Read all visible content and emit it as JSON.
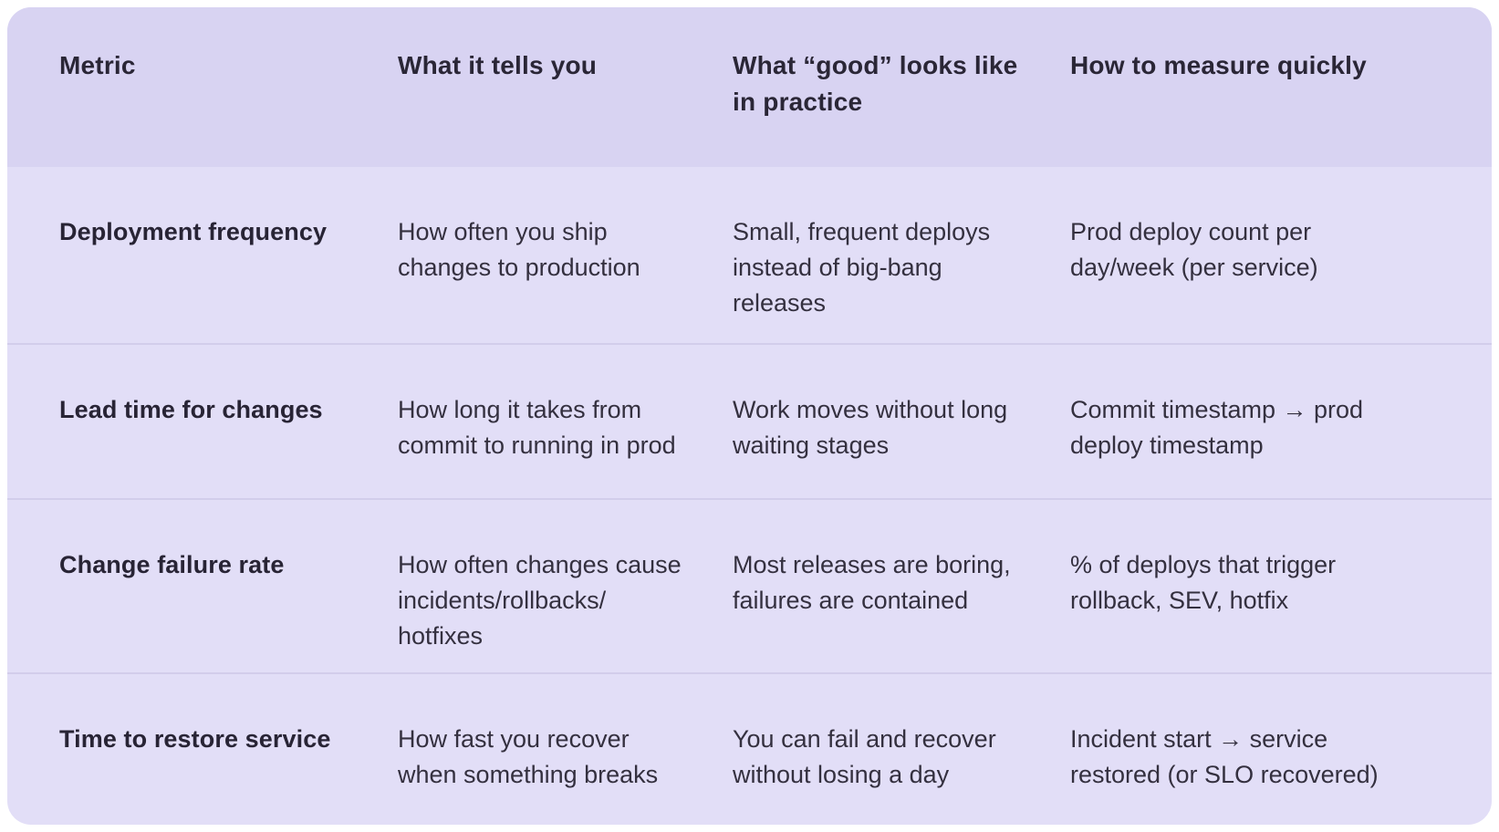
{
  "page": {
    "background_color": "#ffffff",
    "card_background_color": "#e2def7",
    "header_background_color": "#d8d3f2",
    "divider_color": "#d2cdeb",
    "text_color": "#34303f"
  },
  "table": {
    "columns": {
      "metric": "Metric",
      "tells": "What it tells you",
      "good": "What “good” looks like in practice",
      "measure": "How to measure quickly"
    },
    "rows": [
      {
        "metric": "Deployment frequency",
        "tells": "How often you ship changes to production",
        "good": "Small, frequent deploys instead of big-bang releases",
        "measure": "Prod deploy count per day/week (per service)"
      },
      {
        "metric": "Lead time for changes",
        "tells": "How long it takes from commit to running in prod",
        "good": "Work moves without long waiting stages",
        "measure": "Commit timestamp → prod deploy timestamp"
      },
      {
        "metric": "Change failure rate",
        "tells": "How often changes cause incidents/​rollbacks/​hotfixes",
        "good": "Most releases are boring, failures are contained",
        "measure": "% of deploys that trigger rollback, SEV, hotfix"
      },
      {
        "metric": "Time to restore service",
        "tells": "How fast you recover when something breaks",
        "good": "You can fail and recover without losing a day",
        "measure": "Incident start → service restored (or SLO recovered)"
      }
    ]
  }
}
